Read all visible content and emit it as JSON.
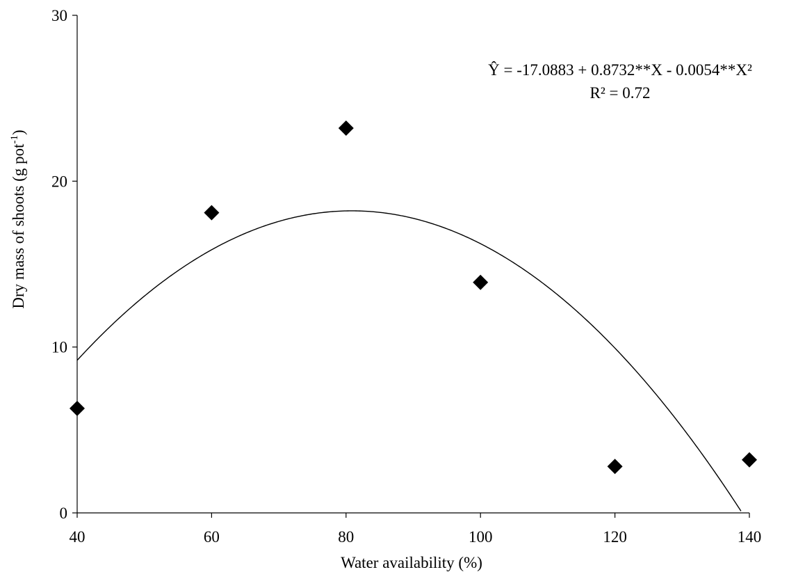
{
  "chart_data": {
    "type": "scatter",
    "title": "",
    "xlabel": "Water availability (%)",
    "ylabel_main": "Dry mass of shoots (g pot",
    "ylabel_sup": "-1",
    "ylabel_close": ")",
    "xlim": [
      40,
      140
    ],
    "ylim": [
      0,
      30
    ],
    "x_ticks": [
      40,
      60,
      80,
      100,
      120,
      140
    ],
    "y_ticks": [
      0,
      10,
      20,
      30
    ],
    "grid": false,
    "series": [
      {
        "x": [
          40,
          60,
          80,
          100,
          120,
          140
        ],
        "y": [
          6.3,
          18.1,
          23.2,
          13.9,
          2.8,
          3.2
        ],
        "marker": "diamond",
        "color": "#000000"
      }
    ],
    "trendline": {
      "type": "polynomial",
      "coefficients": [
        -17.0883,
        0.8732,
        -0.0054
      ],
      "color": "#000000"
    },
    "annotations": {
      "equation": "Ŷ = -17.0883 + 0.8732**X - 0.0054**X²",
      "r_squared": "R² = 0.72"
    }
  }
}
